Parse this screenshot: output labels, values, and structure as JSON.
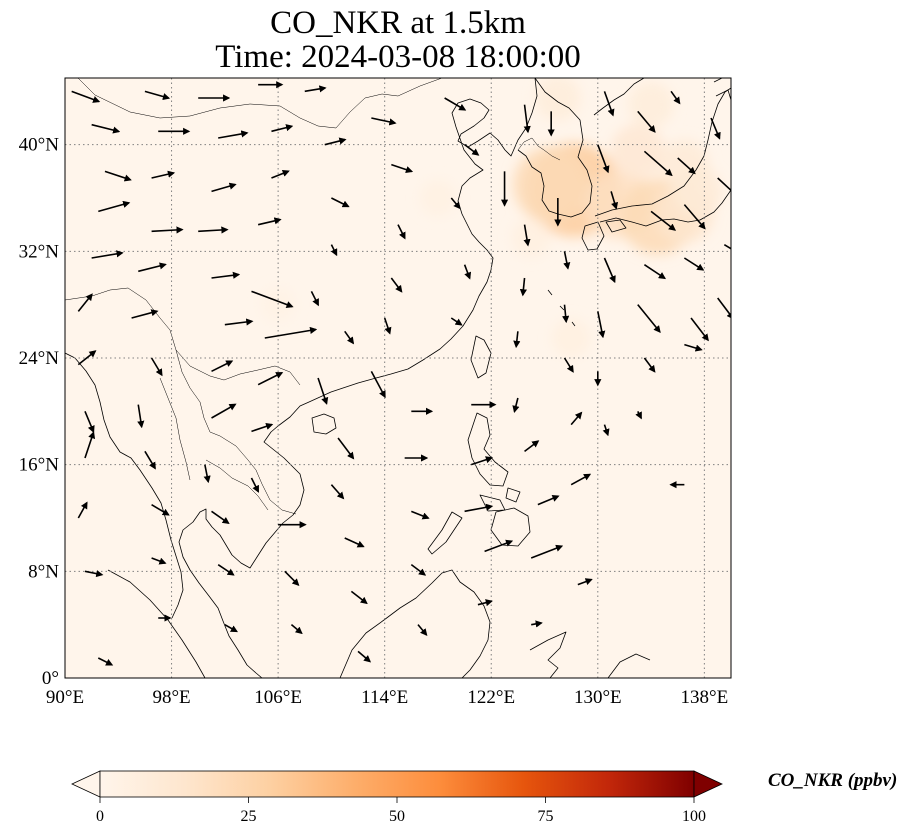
{
  "title": {
    "line1": "CO_NKR at 1.5km",
    "line2": "Time: 2024-03-08 18:00:00"
  },
  "map": {
    "projection": "PlateCarree",
    "extent": {
      "lon": [
        90,
        140
      ],
      "lat": [
        0,
        45
      ]
    },
    "gridlines": "dotted",
    "lon_ticks": [
      {
        "value": 90,
        "label": "90°E"
      },
      {
        "value": 98,
        "label": "98°E"
      },
      {
        "value": 106,
        "label": "106°E"
      },
      {
        "value": 114,
        "label": "114°E"
      },
      {
        "value": 122,
        "label": "122°E"
      },
      {
        "value": 130,
        "label": "130°E"
      },
      {
        "value": 138,
        "label": "138°E"
      }
    ],
    "lat_ticks": [
      {
        "value": 0,
        "label": "0°"
      },
      {
        "value": 8,
        "label": "8°N"
      },
      {
        "value": 16,
        "label": "16°N"
      },
      {
        "value": 24,
        "label": "24°N"
      },
      {
        "value": 32,
        "label": "32°N"
      },
      {
        "value": 40,
        "label": "40°N"
      }
    ],
    "colors": {
      "background": "#fff5eb",
      "coast": "#000000",
      "grid": "#808080"
    }
  },
  "colorbar": {
    "label": "CO_NKR (ppbv)",
    "range": [
      0,
      100
    ],
    "colormap": "OrRd",
    "extend": "both",
    "ticks": [
      {
        "value": 0,
        "label": "0"
      },
      {
        "value": 25,
        "label": "25"
      },
      {
        "value": 50,
        "label": "50"
      },
      {
        "value": 75,
        "label": "75"
      },
      {
        "value": 100,
        "label": "100"
      }
    ],
    "stops": [
      "#fff5eb",
      "#fee6ce",
      "#fdd0a2",
      "#fdae6b",
      "#fd8d3c",
      "#e6550d",
      "#c2270a",
      "#7f0000"
    ]
  },
  "chart_data": {
    "type": "heatmap",
    "title": "CO_NKR at 1.5km",
    "subtitle": "Time: 2024-03-08 18:00:00",
    "units": "ppbv",
    "vrange": [
      0,
      100
    ],
    "hotspots": [
      {
        "lon": 128.2,
        "lat": 36.6,
        "value": 30
      },
      {
        "lon": 126.5,
        "lat": 37.0,
        "value": 22
      },
      {
        "lon": 131.5,
        "lat": 35.5,
        "value": 18
      },
      {
        "lon": 134.5,
        "lat": 34.6,
        "value": 22
      },
      {
        "lon": 136.5,
        "lat": 34.8,
        "value": 14
      },
      {
        "lon": 133.0,
        "lat": 39.5,
        "value": 12
      },
      {
        "lon": 136.5,
        "lat": 38.5,
        "value": 10
      },
      {
        "lon": 134.0,
        "lat": 43.0,
        "value": 8
      },
      {
        "lon": 127.0,
        "lat": 43.5,
        "value": 8
      },
      {
        "lon": 137.5,
        "lat": 36.5,
        "value": 10
      },
      {
        "lon": 125.0,
        "lat": 33.0,
        "value": 5
      },
      {
        "lon": 128.0,
        "lat": 25.5,
        "value": 5
      },
      {
        "lon": 118.0,
        "lat": 36.0,
        "value": 4
      },
      {
        "lon": 106.0,
        "lat": 28.0,
        "value": 3
      }
    ],
    "wind_vectors": [
      {
        "lon": 90.5,
        "lat": 44.0,
        "u": 1.6,
        "v": -0.6
      },
      {
        "lon": 92.0,
        "lat": 41.5,
        "u": 1.6,
        "v": -0.4
      },
      {
        "lon": 93.0,
        "lat": 38.0,
        "u": 1.5,
        "v": -0.5
      },
      {
        "lon": 92.5,
        "lat": 35.0,
        "u": 1.8,
        "v": 0.5
      },
      {
        "lon": 92.0,
        "lat": 31.5,
        "u": 1.8,
        "v": 0.3
      },
      {
        "lon": 91.0,
        "lat": 27.5,
        "u": 0.8,
        "v": 1.0
      },
      {
        "lon": 91.0,
        "lat": 23.5,
        "u": 1.0,
        "v": 0.8
      },
      {
        "lon": 91.5,
        "lat": 20.0,
        "u": 0.5,
        "v": -1.2
      },
      {
        "lon": 91.5,
        "lat": 16.5,
        "u": 0.5,
        "v": 1.5
      },
      {
        "lon": 91.0,
        "lat": 12.0,
        "u": 0.5,
        "v": 0.9
      },
      {
        "lon": 91.5,
        "lat": 8.0,
        "u": 1.0,
        "v": -0.2
      },
      {
        "lon": 92.5,
        "lat": 1.5,
        "u": 0.8,
        "v": -0.4
      },
      {
        "lon": 96.0,
        "lat": 44.0,
        "u": 1.4,
        "v": -0.4
      },
      {
        "lon": 97.0,
        "lat": 41.0,
        "u": 1.8,
        "v": 0.0
      },
      {
        "lon": 96.5,
        "lat": 37.5,
        "u": 1.3,
        "v": 0.3
      },
      {
        "lon": 96.5,
        "lat": 33.5,
        "u": 1.8,
        "v": 0.1
      },
      {
        "lon": 95.5,
        "lat": 30.5,
        "u": 1.6,
        "v": 0.4
      },
      {
        "lon": 95.0,
        "lat": 27.0,
        "u": 1.5,
        "v": 0.4
      },
      {
        "lon": 96.5,
        "lat": 24.0,
        "u": 0.6,
        "v": -1.0
      },
      {
        "lon": 95.5,
        "lat": 20.5,
        "u": 0.2,
        "v": -1.3
      },
      {
        "lon": 96.0,
        "lat": 17.0,
        "u": 0.6,
        "v": -1.0
      },
      {
        "lon": 96.5,
        "lat": 13.0,
        "u": 1.0,
        "v": -0.6
      },
      {
        "lon": 96.5,
        "lat": 9.0,
        "u": 0.8,
        "v": -0.3
      },
      {
        "lon": 97.0,
        "lat": 4.5,
        "u": 0.7,
        "v": 0.0
      },
      {
        "lon": 100.0,
        "lat": 43.5,
        "u": 1.8,
        "v": 0.0
      },
      {
        "lon": 101.5,
        "lat": 40.5,
        "u": 1.7,
        "v": 0.3
      },
      {
        "lon": 101.0,
        "lat": 36.5,
        "u": 1.4,
        "v": 0.4
      },
      {
        "lon": 100.0,
        "lat": 33.5,
        "u": 1.7,
        "v": 0.1
      },
      {
        "lon": 101.0,
        "lat": 30.0,
        "u": 1.6,
        "v": 0.2
      },
      {
        "lon": 102.0,
        "lat": 26.5,
        "u": 1.6,
        "v": 0.2
      },
      {
        "lon": 101.0,
        "lat": 23.0,
        "u": 1.2,
        "v": 0.6
      },
      {
        "lon": 101.0,
        "lat": 19.5,
        "u": 1.4,
        "v": 0.8
      },
      {
        "lon": 100.5,
        "lat": 16.0,
        "u": 0.2,
        "v": -1.0
      },
      {
        "lon": 101.0,
        "lat": 12.5,
        "u": 1.0,
        "v": -0.7
      },
      {
        "lon": 101.5,
        "lat": 8.5,
        "u": 0.9,
        "v": -0.6
      },
      {
        "lon": 102.0,
        "lat": 4.0,
        "u": 0.7,
        "v": -0.4
      },
      {
        "lon": 104.5,
        "lat": 44.5,
        "u": 1.4,
        "v": 0.0
      },
      {
        "lon": 105.5,
        "lat": 41.0,
        "u": 1.2,
        "v": 0.3
      },
      {
        "lon": 105.5,
        "lat": 37.5,
        "u": 1.0,
        "v": 0.4
      },
      {
        "lon": 104.5,
        "lat": 34.0,
        "u": 1.3,
        "v": 0.3
      },
      {
        "lon": 104.0,
        "lat": 29.0,
        "u": 2.4,
        "v": -0.9
      },
      {
        "lon": 105.0,
        "lat": 25.5,
        "u": 3.0,
        "v": 0.5
      },
      {
        "lon": 104.5,
        "lat": 22.0,
        "u": 1.4,
        "v": 0.7
      },
      {
        "lon": 104.0,
        "lat": 18.5,
        "u": 1.2,
        "v": 0.4
      },
      {
        "lon": 104.0,
        "lat": 15.0,
        "u": 0.4,
        "v": -0.8
      },
      {
        "lon": 106.0,
        "lat": 11.5,
        "u": 1.6,
        "v": 0.0
      },
      {
        "lon": 106.5,
        "lat": 8.0,
        "u": 0.8,
        "v": -0.8
      },
      {
        "lon": 107.0,
        "lat": 4.0,
        "u": 0.6,
        "v": -0.5
      },
      {
        "lon": 108.0,
        "lat": 44.0,
        "u": 1.2,
        "v": 0.2
      },
      {
        "lon": 109.5,
        "lat": 40.0,
        "u": 1.2,
        "v": 0.3
      },
      {
        "lon": 110.0,
        "lat": 36.0,
        "u": 1.0,
        "v": -0.5
      },
      {
        "lon": 110.0,
        "lat": 32.5,
        "u": 0.3,
        "v": -0.6
      },
      {
        "lon": 108.5,
        "lat": 29.0,
        "u": 0.4,
        "v": -0.8
      },
      {
        "lon": 111.0,
        "lat": 26.0,
        "u": 0.5,
        "v": -0.7
      },
      {
        "lon": 109.0,
        "lat": 22.5,
        "u": 0.5,
        "v": -1.5
      },
      {
        "lon": 110.5,
        "lat": 18.0,
        "u": 0.9,
        "v": -1.2
      },
      {
        "lon": 110.0,
        "lat": 14.5,
        "u": 0.7,
        "v": -0.8
      },
      {
        "lon": 111.0,
        "lat": 10.5,
        "u": 1.1,
        "v": -0.5
      },
      {
        "lon": 111.5,
        "lat": 6.5,
        "u": 0.9,
        "v": -0.7
      },
      {
        "lon": 112.0,
        "lat": 2.0,
        "u": 0.7,
        "v": -0.6
      },
      {
        "lon": 113.0,
        "lat": 42.0,
        "u": 1.4,
        "v": -0.3
      },
      {
        "lon": 114.5,
        "lat": 38.5,
        "u": 1.2,
        "v": -0.4
      },
      {
        "lon": 115.0,
        "lat": 34.0,
        "u": 0.4,
        "v": -0.8
      },
      {
        "lon": 114.5,
        "lat": 30.0,
        "u": 0.6,
        "v": -0.8
      },
      {
        "lon": 114.0,
        "lat": 27.0,
        "u": 0.3,
        "v": -0.9
      },
      {
        "lon": 113.0,
        "lat": 23.0,
        "u": 0.8,
        "v": -1.5
      },
      {
        "lon": 116.0,
        "lat": 20.0,
        "u": 1.2,
        "v": 0.0
      },
      {
        "lon": 115.5,
        "lat": 16.5,
        "u": 1.3,
        "v": 0.0
      },
      {
        "lon": 116.0,
        "lat": 12.5,
        "u": 1.0,
        "v": -0.4
      },
      {
        "lon": 116.0,
        "lat": 8.5,
        "u": 0.8,
        "v": -0.6
      },
      {
        "lon": 116.5,
        "lat": 4.0,
        "u": 0.5,
        "v": -0.6
      },
      {
        "lon": 118.5,
        "lat": 43.5,
        "u": 1.2,
        "v": -0.7
      },
      {
        "lon": 120.0,
        "lat": 40.0,
        "u": 0.8,
        "v": -0.6
      },
      {
        "lon": 119.0,
        "lat": 36.0,
        "u": 0.5,
        "v": -0.6
      },
      {
        "lon": 120.0,
        "lat": 31.0,
        "u": 0.3,
        "v": -0.8
      },
      {
        "lon": 119.0,
        "lat": 27.0,
        "u": 0.6,
        "v": -0.4
      },
      {
        "lon": 120.5,
        "lat": 20.5,
        "u": 1.4,
        "v": 0.0
      },
      {
        "lon": 120.5,
        "lat": 16.0,
        "u": 1.2,
        "v": 0.4
      },
      {
        "lon": 120.0,
        "lat": 12.5,
        "u": 1.6,
        "v": 0.3
      },
      {
        "lon": 121.5,
        "lat": 9.5,
        "u": 1.6,
        "v": 0.6
      },
      {
        "lon": 121.0,
        "lat": 5.5,
        "u": 0.8,
        "v": 0.2
      },
      {
        "lon": 124.5,
        "lat": 43.0,
        "u": 0.2,
        "v": -1.6
      },
      {
        "lon": 123.0,
        "lat": 38.0,
        "u": 0.0,
        "v": -2.0
      },
      {
        "lon": 124.5,
        "lat": 34.0,
        "u": 0.2,
        "v": -1.2
      },
      {
        "lon": 124.5,
        "lat": 30.0,
        "u": -0.1,
        "v": -1.0
      },
      {
        "lon": 124.0,
        "lat": 26.0,
        "u": -0.1,
        "v": -0.9
      },
      {
        "lon": 124.0,
        "lat": 21.0,
        "u": -0.2,
        "v": -0.8
      },
      {
        "lon": 124.5,
        "lat": 17.0,
        "u": 0.8,
        "v": 0.6
      },
      {
        "lon": 125.5,
        "lat": 13.0,
        "u": 1.2,
        "v": 0.5
      },
      {
        "lon": 125.0,
        "lat": 9.0,
        "u": 1.8,
        "v": 0.7
      },
      {
        "lon": 125.0,
        "lat": 4.0,
        "u": 0.6,
        "v": 0.1
      },
      {
        "lon": 126.5,
        "lat": 42.5,
        "u": 0.0,
        "v": -1.4
      },
      {
        "lon": 127.0,
        "lat": 36.0,
        "u": 0.0,
        "v": -1.6
      },
      {
        "lon": 127.5,
        "lat": 32.0,
        "u": 0.2,
        "v": -1.0
      },
      {
        "lon": 127.5,
        "lat": 28.0,
        "u": 0.1,
        "v": -1.0
      },
      {
        "lon": 127.5,
        "lat": 24.0,
        "u": 0.5,
        "v": -0.8
      },
      {
        "lon": 128.0,
        "lat": 19.0,
        "u": 0.6,
        "v": 0.7
      },
      {
        "lon": 128.0,
        "lat": 14.5,
        "u": 1.1,
        "v": 0.6
      },
      {
        "lon": 128.5,
        "lat": 7.0,
        "u": 0.8,
        "v": 0.3
      },
      {
        "lon": 130.5,
        "lat": 44.0,
        "u": 0.5,
        "v": -1.4
      },
      {
        "lon": 130.0,
        "lat": 40.0,
        "u": 0.6,
        "v": -1.6
      },
      {
        "lon": 131.0,
        "lat": 36.5,
        "u": 0.3,
        "v": -1.0
      },
      {
        "lon": 130.5,
        "lat": 31.5,
        "u": 0.6,
        "v": -1.4
      },
      {
        "lon": 130.0,
        "lat": 27.5,
        "u": 0.3,
        "v": -1.5
      },
      {
        "lon": 130.0,
        "lat": 23.0,
        "u": 0.0,
        "v": -0.8
      },
      {
        "lon": 130.5,
        "lat": 19.0,
        "u": 0.2,
        "v": -0.6
      },
      {
        "lon": 133.0,
        "lat": 42.5,
        "u": 1.0,
        "v": -1.2
      },
      {
        "lon": 133.5,
        "lat": 39.5,
        "u": 1.6,
        "v": -1.4
      },
      {
        "lon": 134.0,
        "lat": 35.0,
        "u": 1.4,
        "v": -1.1
      },
      {
        "lon": 133.5,
        "lat": 31.0,
        "u": 1.2,
        "v": -0.8
      },
      {
        "lon": 133.0,
        "lat": 28.0,
        "u": 1.3,
        "v": -1.6
      },
      {
        "lon": 133.5,
        "lat": 24.0,
        "u": 0.6,
        "v": -0.8
      },
      {
        "lon": 133.0,
        "lat": 20.0,
        "u": 0.2,
        "v": -0.4
      },
      {
        "lon": 135.5,
        "lat": 44.0,
        "u": 0.5,
        "v": -0.7
      },
      {
        "lon": 136.0,
        "lat": 39.0,
        "u": 1.0,
        "v": -0.9
      },
      {
        "lon": 136.5,
        "lat": 35.5,
        "u": 1.2,
        "v": -1.4
      },
      {
        "lon": 136.5,
        "lat": 31.5,
        "u": 1.1,
        "v": -0.7
      },
      {
        "lon": 137.0,
        "lat": 27.0,
        "u": 1.0,
        "v": -1.3
      },
      {
        "lon": 136.5,
        "lat": 25.0,
        "u": 1.0,
        "v": -0.3
      },
      {
        "lon": 136.5,
        "lat": 14.5,
        "u": -0.8,
        "v": 0.0
      },
      {
        "lon": 138.5,
        "lat": 42.0,
        "u": 0.5,
        "v": -1.2
      },
      {
        "lon": 139.0,
        "lat": 37.5,
        "u": 1.3,
        "v": -1.2
      },
      {
        "lon": 139.5,
        "lat": 32.5,
        "u": 1.0,
        "v": -0.6
      },
      {
        "lon": 139.0,
        "lat": 28.5,
        "u": 0.9,
        "v": -1.2
      }
    ]
  }
}
